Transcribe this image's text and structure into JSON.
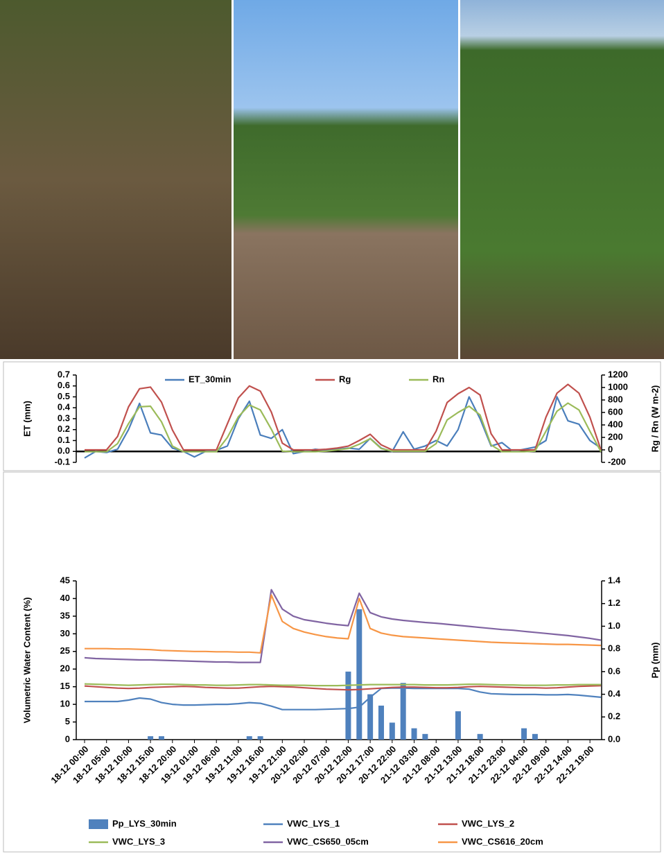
{
  "chart_data": [
    {
      "type": "line",
      "ylabel": "ET (mm)",
      "y2label": "Rg / Rn (W m-2)",
      "legend": "top",
      "ylim": [
        -0.1,
        0.7
      ],
      "yticks": [
        -0.1,
        {
          "value": 0,
          "label": "0.0"
        },
        0.1,
        0.2,
        0.3,
        0.4,
        0.5,
        0.6,
        0.7
      ],
      "y2lim": [
        -200,
        1200
      ],
      "y2ticks": [
        -200,
        0,
        200,
        400,
        600,
        800,
        1000,
        1200
      ],
      "series": [
        {
          "name": "ET_30min",
          "color": "#4a7ebb",
          "values": [
            -0.06,
            0.0,
            -0.01,
            0.02,
            0.2,
            0.44,
            0.17,
            0.15,
            0.03,
            0.0,
            -0.05,
            0.0,
            0.01,
            0.05,
            0.3,
            0.46,
            0.15,
            0.12,
            0.2,
            -0.02,
            0.0,
            0.02,
            0.01,
            0.02,
            0.03,
            0.02,
            0.12,
            0.03,
            0.0,
            0.18,
            0.02,
            0.05,
            0.1,
            0.05,
            0.2,
            0.5,
            0.3,
            0.05,
            0.08,
            0.0,
            0.02,
            0.04,
            0.1,
            0.5,
            0.28,
            0.25,
            0.1,
            0.03
          ]
        },
        {
          "name": "Rg",
          "color": "#c0504d",
          "axis": "y2",
          "values": [
            0,
            0,
            0,
            214,
            689,
            980,
            1007,
            765,
            318,
            0,
            0,
            0,
            0,
            419,
            833,
            1025,
            941,
            606,
            108,
            0,
            0,
            0,
            10,
            30,
            60,
            150,
            250,
            80,
            0,
            0,
            0,
            0,
            300,
            760,
            900,
            1000,
            880,
            260,
            0,
            0,
            0,
            0,
            525,
            909,
            1050,
            909,
            525,
            0
          ]
        },
        {
          "name": "Rn",
          "color": "#9bbb59",
          "axis": "y2",
          "values": [
            -30,
            -30,
            -30,
            100,
            420,
            690,
            700,
            450,
            60,
            -30,
            -30,
            -30,
            -30,
            200,
            530,
            720,
            640,
            330,
            -20,
            -30,
            -30,
            -30,
            -20,
            0,
            20,
            90,
            180,
            20,
            -20,
            -20,
            -20,
            -20,
            100,
            480,
            600,
            700,
            560,
            80,
            -30,
            -30,
            -30,
            -20,
            300,
            620,
            750,
            640,
            300,
            -30
          ]
        }
      ]
    },
    {
      "type": "combo",
      "ylabel": "Volumetric Water Content (%)",
      "y2label": "Pp (mm)",
      "legend": "bottom",
      "categories": [
        "18-12 00:00",
        null,
        "18-12 05:00",
        null,
        "18-12 10:00",
        null,
        "18-12 15:00",
        null,
        "18-12 20:00",
        null,
        "19-12 01:00",
        null,
        "19-12 06:00",
        null,
        "19-12 11:00",
        null,
        "19-12 16:00",
        null,
        "19-12 21:00",
        null,
        "20-12 02:00",
        null,
        "20-12 07:00",
        null,
        "20-12 12:00",
        null,
        "20-12 17:00",
        null,
        "20-12 22:00",
        null,
        "21-12 03:00",
        null,
        "21-12 08:00",
        null,
        "21-12 13:00",
        null,
        "21-12 18:00",
        null,
        "21-12 23:00",
        null,
        "22-12 04:00",
        null,
        "22-12 09:00",
        null,
        "22-12 14:00",
        null,
        "22-12 19:00",
        null
      ],
      "ylim": [
        0,
        45
      ],
      "yticks": [
        0,
        5,
        10,
        15,
        20,
        25,
        30,
        35,
        40,
        45
      ],
      "y2lim": [
        0,
        1.4
      ],
      "y2ticks": [
        {
          "value": 0,
          "label": "0.0"
        },
        0.2,
        0.4,
        0.6,
        0.8,
        {
          "value": 1,
          "label": "1.0"
        },
        1.2,
        1.4
      ],
      "series": [
        {
          "name": "Pp_LYS_30min",
          "color": "#4f81bd",
          "kind": "bar",
          "axis": "y2",
          "values": [
            0,
            0,
            0,
            0,
            0,
            0,
            0.03,
            0.03,
            0,
            0,
            0,
            0,
            0,
            0,
            0,
            0.03,
            0.03,
            0,
            0,
            0,
            0,
            0,
            0,
            0,
            0.6,
            1.15,
            0.4,
            0.3,
            0.15,
            0.5,
            0.1,
            0.05,
            0,
            0,
            0.25,
            0,
            0.05,
            0,
            0,
            0,
            0.1,
            0.05,
            0,
            0,
            0,
            0,
            0,
            0
          ]
        },
        {
          "name": "VWC_LYS_1",
          "color": "#4f81bd",
          "values": [
            10.8,
            10.8,
            10.8,
            10.8,
            11.2,
            11.8,
            11.5,
            10.5,
            10,
            9.8,
            9.8,
            9.9,
            10,
            10,
            10.2,
            10.5,
            10.3,
            9.5,
            8.5,
            8.5,
            8.5,
            8.5,
            8.6,
            8.7,
            8.8,
            9.2,
            12,
            14.5,
            14.6,
            14.6,
            14.5,
            14.5,
            14.5,
            14.5,
            14.5,
            14.3,
            13.5,
            13,
            12.9,
            12.8,
            12.8,
            12.8,
            12.7,
            12.7,
            12.8,
            12.6,
            12.3,
            12
          ]
        },
        {
          "name": "VWC_LYS_2",
          "color": "#c0504d",
          "values": [
            15.2,
            15,
            14.8,
            14.6,
            14.5,
            14.6,
            14.8,
            14.9,
            15,
            15.1,
            15,
            14.8,
            14.7,
            14.6,
            14.6,
            14.8,
            15,
            15.1,
            15,
            14.9,
            14.7,
            14.5,
            14.3,
            14.2,
            14.1,
            14.2,
            14.4,
            14.6,
            14.8,
            14.9,
            14.9,
            14.8,
            14.7,
            14.7,
            14.8,
            15,
            15.1,
            15,
            14.9,
            14.8,
            14.7,
            14.7,
            14.6,
            14.7,
            14.9,
            15.1,
            15.2,
            15.3
          ]
        },
        {
          "name": "VWC_LYS_3",
          "color": "#9bbb59",
          "values": [
            15.8,
            15.7,
            15.6,
            15.5,
            15.4,
            15.5,
            15.6,
            15.7,
            15.7,
            15.6,
            15.5,
            15.5,
            15.4,
            15.4,
            15.5,
            15.6,
            15.6,
            15.5,
            15.4,
            15.4,
            15.4,
            15.3,
            15.3,
            15.3,
            15.4,
            15.5,
            15.6,
            15.6,
            15.6,
            15.6,
            15.6,
            15.5,
            15.5,
            15.5,
            15.6,
            15.7,
            15.7,
            15.6,
            15.5,
            15.5,
            15.4,
            15.4,
            15.4,
            15.5,
            15.5,
            15.6,
            15.6,
            15.6
          ]
        },
        {
          "name": "VWC_CS650_05cm",
          "color": "#8064a2",
          "values": [
            23.2,
            23,
            22.9,
            22.8,
            22.7,
            22.6,
            22.6,
            22.5,
            22.4,
            22.3,
            22.2,
            22.1,
            22,
            22,
            21.9,
            21.9,
            21.9,
            42.5,
            37,
            35,
            34,
            33.5,
            33,
            32.6,
            32.3,
            41.5,
            36,
            34.8,
            34.2,
            33.8,
            33.5,
            33.2,
            33,
            32.7,
            32.4,
            32.1,
            31.8,
            31.5,
            31.2,
            31,
            30.7,
            30.4,
            30.1,
            29.8,
            29.5,
            29.1,
            28.7,
            28.2
          ]
        },
        {
          "name": "VWC_CS616_20cm",
          "color": "#f79646",
          "values": [
            25.8,
            25.8,
            25.8,
            25.7,
            25.7,
            25.6,
            25.5,
            25.3,
            25.2,
            25.1,
            25,
            25,
            24.9,
            24.9,
            24.8,
            24.8,
            24.6,
            41,
            33.5,
            31.5,
            30.5,
            29.8,
            29.2,
            28.8,
            28.6,
            40,
            31.5,
            30.2,
            29.6,
            29.2,
            29,
            28.8,
            28.6,
            28.4,
            28.2,
            28,
            27.8,
            27.6,
            27.5,
            27.4,
            27.3,
            27.2,
            27.1,
            27,
            27,
            26.9,
            26.8,
            26.7
          ]
        }
      ]
    }
  ]
}
